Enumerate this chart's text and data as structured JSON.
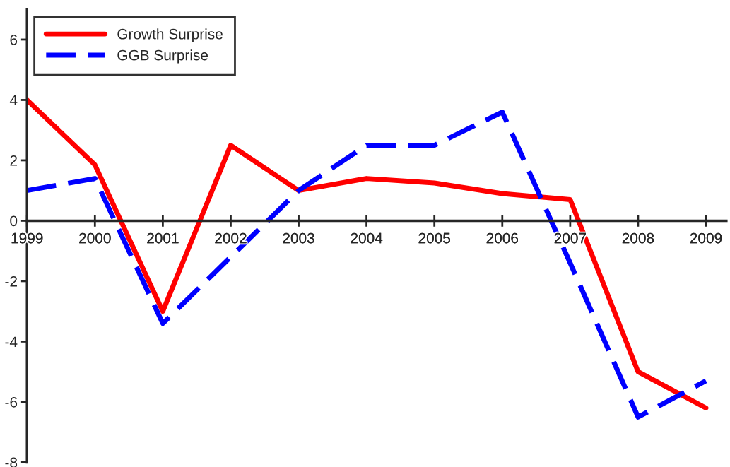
{
  "chart_data": {
    "type": "line",
    "x": [
      1999,
      2000,
      2001,
      2002,
      2003,
      2004,
      2005,
      2006,
      2007,
      2008,
      2009
    ],
    "series": [
      {
        "name": "Growth Surprise",
        "color": "#ff0000",
        "line_style": "solid",
        "values": [
          4.0,
          1.85,
          -3.0,
          2.5,
          1.0,
          1.4,
          1.25,
          0.9,
          0.7,
          -5.0,
          -6.2
        ]
      },
      {
        "name": "GGB Surprise",
        "color": "#0000ff",
        "line_style": "dashed",
        "values": [
          1.0,
          1.4,
          -3.4,
          -1.2,
          1.0,
          2.5,
          2.5,
          3.6,
          -1.4,
          -6.5,
          -5.3
        ]
      }
    ],
    "xlim": [
      1999,
      2009.3
    ],
    "xticks": [
      1999,
      2000,
      2001,
      2002,
      2003,
      2004,
      2005,
      2006,
      2007,
      2008,
      2009
    ],
    "ylim": [
      -8,
      7
    ],
    "yticks": [
      -8,
      -6,
      -4,
      -2,
      0,
      2,
      4,
      6
    ],
    "legend": "top left",
    "grid": false
  }
}
